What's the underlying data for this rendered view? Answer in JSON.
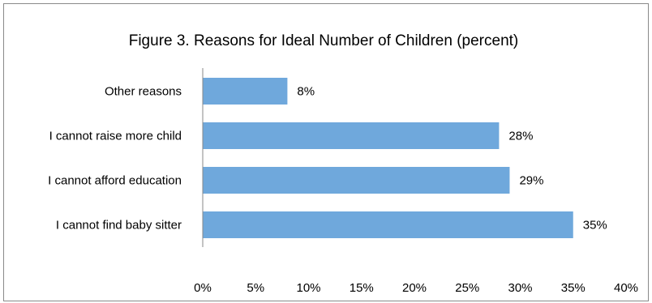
{
  "chart_data": {
    "type": "bar",
    "orientation": "horizontal",
    "title": "Figure 3. Reasons for Ideal Number of Children (percent)",
    "categories": [
      "Other reasons",
      "I cannot raise more child",
      "I cannot afford education",
      "I cannot find baby sitter"
    ],
    "values": [
      8,
      28,
      29,
      35
    ],
    "value_labels": [
      "8%",
      "28%",
      "29%",
      "35%"
    ],
    "xlim": [
      0,
      40
    ],
    "x_ticks": [
      0,
      5,
      10,
      15,
      20,
      25,
      30,
      35,
      40
    ],
    "x_tick_labels": [
      "0%",
      "5%",
      "10%",
      "15%",
      "20%",
      "25%",
      "30%",
      "35%",
      "40%"
    ],
    "grid": false,
    "legend": "none",
    "bar_color": "#6fa8dc"
  }
}
